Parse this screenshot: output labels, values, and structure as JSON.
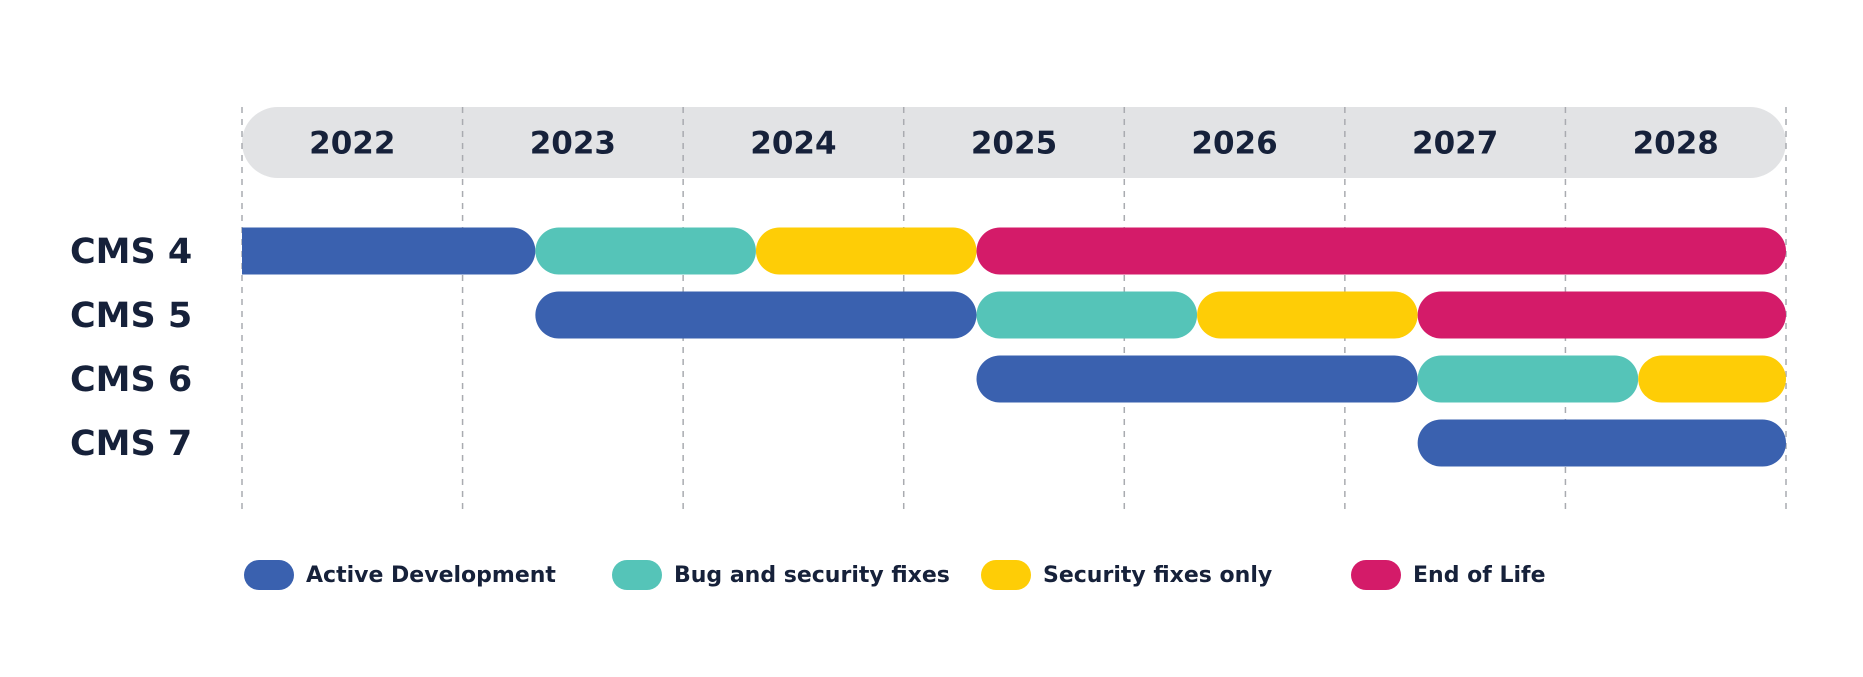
{
  "chart_data": {
    "type": "timeline",
    "categories": [
      "2022",
      "2023",
      "2024",
      "2025",
      "2026",
      "2027",
      "2028"
    ],
    "xlim": [
      2022,
      2029
    ],
    "rows": [
      "CMS 4",
      "CMS 5",
      "CMS 6",
      "CMS 7"
    ],
    "grid": true,
    "series": [
      {
        "name": "Active Development",
        "color": "#3a61af",
        "start": [
          2022,
          2023.33,
          2025.33,
          2027.33
        ],
        "end": [
          2023.33,
          2025.33,
          2027.33,
          2029
        ]
      },
      {
        "name": "Bug and security fixes",
        "color": "#55c4b8",
        "start": [
          2023.33,
          2025.33,
          2027.33,
          null
        ],
        "end": [
          2024.33,
          2026.33,
          2028.33,
          null
        ]
      },
      {
        "name": "Security fixes only",
        "color": "#fecd06",
        "start": [
          2024.33,
          2026.33,
          2028.33,
          null
        ],
        "end": [
          2025.33,
          2027.33,
          2029,
          null
        ]
      },
      {
        "name": "End of Life",
        "color": "#d41b69",
        "start": [
          2025.33,
          2027.33,
          null,
          null
        ],
        "end": [
          2029,
          2029,
          null,
          null
        ]
      }
    ]
  }
}
